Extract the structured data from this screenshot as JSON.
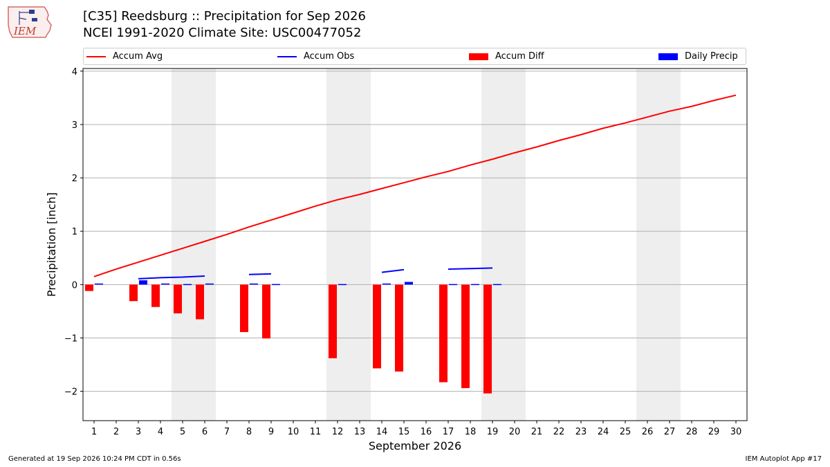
{
  "header": {
    "title_line1": "[C35] Reedsburg :: Precipitation for Sep 2026",
    "title_line2": "NCEI 1991-2020 Climate Site: USC00477052"
  },
  "logo": {
    "text": "IEM"
  },
  "colors": {
    "avg": "#ff0000",
    "obs": "#0000ff",
    "diff": "#ff0000",
    "daily": "#0000ff",
    "weekend": "#eeeeee",
    "grid": "#b0b0b0"
  },
  "legend": {
    "position": "top, spanning full width",
    "items": [
      {
        "label": "Accum Avg",
        "kind": "line",
        "color": "#ff0000"
      },
      {
        "label": "Accum Obs",
        "kind": "line",
        "color": "#0000ff"
      },
      {
        "label": "Accum Diff",
        "kind": "box",
        "color": "#ff0000"
      },
      {
        "label": "Daily Precip",
        "kind": "box",
        "color": "#0000ff"
      }
    ]
  },
  "chart_data": {
    "type": "bar",
    "xlabel": "September 2026",
    "ylabel": "Precipitation [inch]",
    "ylim": [
      -2.55,
      4.05
    ],
    "xlim": [
      0.5,
      30.5
    ],
    "yticks": [
      -2,
      -1,
      0,
      1,
      2,
      3,
      4
    ],
    "ytick_labels": [
      "−2",
      "−1",
      "0",
      "1",
      "2",
      "3",
      "4"
    ],
    "xticks": [
      1,
      2,
      3,
      4,
      5,
      6,
      7,
      8,
      9,
      10,
      11,
      12,
      13,
      14,
      15,
      16,
      17,
      18,
      19,
      20,
      21,
      22,
      23,
      24,
      25,
      26,
      27,
      28,
      29,
      30
    ],
    "grid": "horizontal",
    "weekend_bands": [
      [
        4.5,
        6.5
      ],
      [
        11.5,
        13.5
      ],
      [
        18.5,
        20.5
      ],
      [
        25.5,
        27.5
      ]
    ],
    "series": [
      {
        "name": "Accum Avg",
        "kind": "line",
        "x": [
          1,
          2,
          3,
          4,
          5,
          6,
          7,
          8,
          9,
          10,
          11,
          12,
          13,
          14,
          15,
          16,
          17,
          18,
          19,
          20,
          21,
          22,
          23,
          24,
          25,
          26,
          27,
          28,
          29,
          30
        ],
        "values": [
          0.15,
          0.29,
          0.42,
          0.55,
          0.68,
          0.81,
          0.94,
          1.08,
          1.21,
          1.34,
          1.47,
          1.59,
          1.69,
          1.8,
          1.91,
          2.02,
          2.12,
          2.24,
          2.35,
          2.47,
          2.58,
          2.7,
          2.81,
          2.93,
          3.03,
          3.14,
          3.25,
          3.34,
          3.45,
          3.55
        ]
      },
      {
        "name": "Accum Obs",
        "kind": "line",
        "segments": [
          {
            "x": [
              3,
              4,
              5,
              6
            ],
            "values": [
              0.11,
              0.13,
              0.14,
              0.16
            ]
          },
          {
            "x": [
              8,
              9
            ],
            "values": [
              0.19,
              0.2
            ]
          },
          {
            "x": [
              14,
              15
            ],
            "values": [
              0.23,
              0.28
            ]
          },
          {
            "x": [
              17,
              18,
              19
            ],
            "values": [
              0.29,
              0.3,
              0.31
            ]
          }
        ]
      },
      {
        "name": "Accum Diff",
        "kind": "bar",
        "x": [
          1,
          3,
          4,
          5,
          6,
          8,
          9,
          12,
          14,
          15,
          17,
          18,
          19
        ],
        "values": [
          -0.12,
          -0.31,
          -0.42,
          -0.54,
          -0.65,
          -0.89,
          -1.01,
          -1.38,
          -1.57,
          -1.63,
          -1.83,
          -1.94,
          -2.04
        ]
      },
      {
        "name": "Daily Precip",
        "kind": "bar",
        "x": [
          1,
          3,
          4,
          5,
          6,
          8,
          9,
          12,
          14,
          15,
          17,
          18,
          19
        ],
        "values": [
          0.02,
          0.08,
          0.02,
          0.01,
          0.02,
          0.02,
          0.01,
          0.01,
          0.02,
          0.05,
          0.01,
          0.01,
          0.01
        ]
      }
    ]
  },
  "footer": {
    "left": "Generated at 19 Sep 2026 10:24 PM CDT in 0.56s",
    "right": "IEM Autoplot App #17"
  }
}
